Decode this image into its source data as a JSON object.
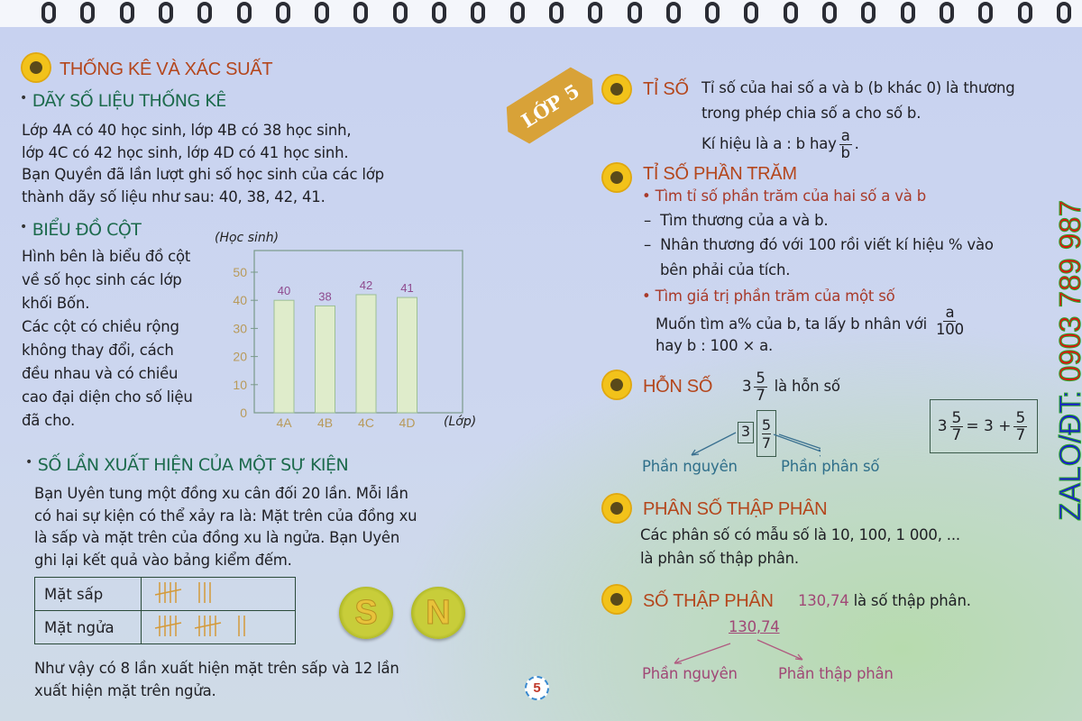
{
  "rings": 27,
  "banner": "LỚP 5",
  "left": {
    "section_title": "THỐNG KÊ VÀ XÁC SUẤT",
    "data_series": {
      "heading": "DÃY SỐ LIỆU THỐNG KÊ",
      "lines": [
        "Lớp 4A có 40 học sinh, lớp 4B có 38 học sinh,",
        "lớp 4C có 42 học sinh, lớp 4D có 41 học sinh.",
        "Bạn Quyền đã lần lượt ghi số học sinh của các lớp",
        "thành dãy số liệu như sau: 40, 38, 42, 41."
      ]
    },
    "bar_chart": {
      "heading": "BIỂU ĐỒ CỘT",
      "lines": [
        "Hình bên là biểu đồ cột",
        "về số học sinh các lớp",
        "khối Bốn.",
        "Các cột có chiều rộng",
        "không thay đổi, cách",
        "đều nhau và có chiều",
        "cao đại diện cho số liệu",
        "đã cho."
      ]
    },
    "event": {
      "heading": "SỐ LẦN XUẤT HIỆN CỦA MỘT SỰ KIỆN",
      "lines": [
        "Bạn Uyên tung một đồng xu cân đối 20 lần. Mỗi lần",
        "có hai sự kiện có thể xảy ra là: Mặt trên của đồng xu",
        "là sấp và mặt trên của đồng xu là ngửa. Bạn Uyên",
        "ghi lại kết quả vào bảng kiểm đếm."
      ],
      "tally": [
        {
          "label": "Mặt sấp",
          "count": 8
        },
        {
          "label": "Mặt ngửa",
          "count": 12
        }
      ],
      "coins": [
        "S",
        "N"
      ],
      "conclusion": [
        "Như vậy có 8 lần xuất hiện mặt trên sấp và 12 lần",
        "xuất hiện mặt trên ngửa."
      ]
    },
    "page_number": "5"
  },
  "chart_data": {
    "type": "bar",
    "categories": [
      "4A",
      "4B",
      "4C",
      "4D"
    ],
    "values": [
      40,
      38,
      42,
      41
    ],
    "ylabel": "(Học sinh)",
    "xlabel": "(Lớp)",
    "yticks": [
      0,
      10,
      20,
      30,
      40,
      50
    ],
    "ylim": [
      0,
      57
    ],
    "grid": false,
    "colors": {
      "bar": "#dfeccb",
      "bar_border": "#9cbf95",
      "value_label": "#8e4a8e",
      "tick": "#b89a5a"
    }
  },
  "right": {
    "ratio": {
      "title": "TỈ SỐ",
      "line1": "Tỉ số của hai số a và b (b khác 0) là thương",
      "line2": "trong phép chia số a cho số b.",
      "line3": "Kí hiệu là a : b hay",
      "num": "a",
      "den": "b"
    },
    "percent": {
      "title": "TỈ SỐ PHẦN TRĂM",
      "b1": "Tìm tỉ số phần trăm của hai số a và b",
      "d1": "Tìm thương của a và b.",
      "d2": "Nhân thương đó với 100 rồi viết kí hiệu % vào",
      "d2b": "bên phải của tích.",
      "b2": "Tìm giá trị phần trăm của một số",
      "l1": "Muốn tìm a% của b, ta lấy b nhân với",
      "num": "a",
      "den": "100",
      "l2": "hay b : 100 × a."
    },
    "mixed": {
      "title": "HỖN SỐ",
      "whole": "3",
      "num": "5",
      "den": "7",
      "desc": "là hỗn số",
      "part_whole": "Phần nguyên",
      "part_frac": "Phần phân số",
      "eq_plus": "= 3 +"
    },
    "decimal_fraction": {
      "title": "PHÂN SỐ THẬP PHÂN",
      "line1": "Các phân số có mẫu số là 10, 100, 1 000, ...",
      "line2": "là phân số thập phân."
    },
    "decimal": {
      "title": "SỐ THẬP PHÂN",
      "number": "130,74",
      "desc": "là số thập phân.",
      "int_part": "130",
      "dec_part": "74",
      "part_int": "Phần nguyên",
      "part_dec": "Phần thập phân"
    }
  },
  "watermark": {
    "prefix": "ZALO/ĐT: ",
    "phone": "0903 789 987"
  }
}
